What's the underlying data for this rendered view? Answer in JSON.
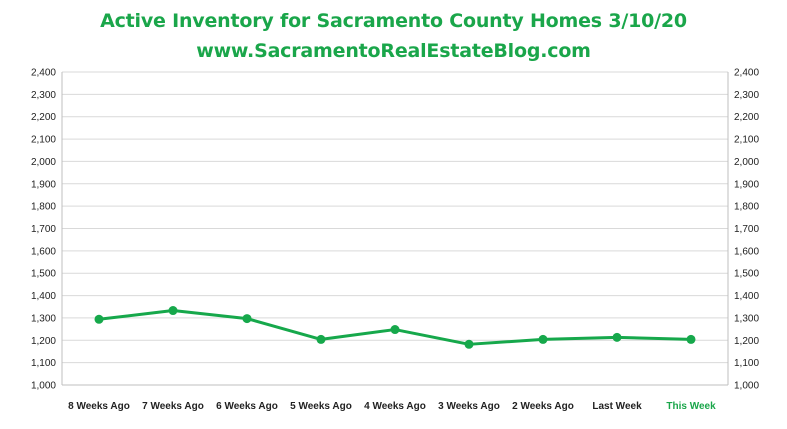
{
  "title": "Active Inventory for Sacramento County Homes 3/10/20",
  "subtitle": "www.SacramentoRealEstateBlog.com",
  "colors": {
    "title": "#1aa64a",
    "series": "#16a84b",
    "highlight_label": "#1aa64a",
    "grid": "#d9d9d9",
    "axis": "#bfbfbf"
  },
  "chart_data": {
    "type": "line",
    "title": "Active Inventory for Sacramento County Homes 3/10/20",
    "subtitle": "www.SacramentoRealEstateBlog.com",
    "categories": [
      "8 Weeks Ago",
      "7 Weeks Ago",
      "6 Weeks Ago",
      "5 Weeks Ago",
      "4 Weeks Ago",
      "3 Weeks Ago",
      "2 Weeks Ago",
      "Last Week",
      "This Week"
    ],
    "highlight_category": "This Week",
    "series": [
      {
        "values": [
          1294,
          1333,
          1297,
          1204,
          1248,
          1182,
          1204,
          1213,
          1204
        ]
      }
    ],
    "ylim": [
      1000,
      2400
    ],
    "ytick_step": 100,
    "yticks": [
      "1,000",
      "1,100",
      "1,200",
      "1,300",
      "1,400",
      "1,500",
      "1,600",
      "1,700",
      "1,800",
      "1,900",
      "2,000",
      "2,100",
      "2,200",
      "2,300",
      "2,400"
    ],
    "secondary_axis": true,
    "grid": true,
    "legend": "none",
    "xlabel": "",
    "ylabel": ""
  }
}
